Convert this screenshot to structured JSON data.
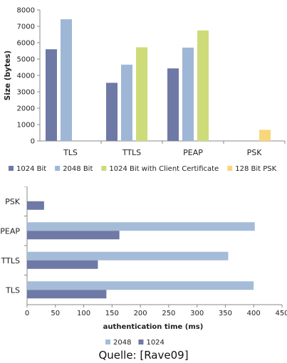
{
  "chart_data": [
    {
      "type": "bar",
      "title": "",
      "xlabel": "",
      "ylabel": "Size (bytes)",
      "ylim": [
        0,
        8000
      ],
      "yticks": [
        0,
        1000,
        2000,
        3000,
        4000,
        5000,
        6000,
        7000,
        8000
      ],
      "categories": [
        "TLS",
        "TTLS",
        "PEAP",
        "PSK"
      ],
      "series": [
        {
          "name": "1024 Bit",
          "color": "#6f79a6",
          "values": [
            5600,
            3550,
            4430,
            null
          ]
        },
        {
          "name": "2048 Bit",
          "color": "#9fb7d6",
          "values": [
            7430,
            4660,
            5700,
            null
          ]
        },
        {
          "name": "1024 Bit with Client Certificate",
          "color": "#cddc78",
          "values": [
            null,
            5720,
            6750,
            null
          ]
        },
        {
          "name": "128 Bit PSK",
          "color": "#f8d67a",
          "values": [
            null,
            null,
            null,
            680
          ]
        }
      ],
      "legend_position": "bottom",
      "grid": false
    },
    {
      "type": "bar",
      "orientation": "horizontal",
      "title": "",
      "xlabel": "authentication time (ms)",
      "ylabel": "",
      "xlim": [
        0,
        450
      ],
      "xticks": [
        0,
        50,
        100,
        150,
        200,
        250,
        300,
        350,
        400,
        450
      ],
      "categories": [
        "TLS",
        "TTLS",
        "PEAP",
        "PSK"
      ],
      "series": [
        {
          "name": "2048",
          "color": "#a4bcd8",
          "values": [
            400,
            355,
            402,
            null
          ]
        },
        {
          "name": "1024",
          "color": "#6f79a6",
          "values": [
            140,
            125,
            163,
            30
          ]
        }
      ],
      "legend_position": "bottom",
      "grid": false
    }
  ],
  "caption": "Quelle: [Rave09]"
}
